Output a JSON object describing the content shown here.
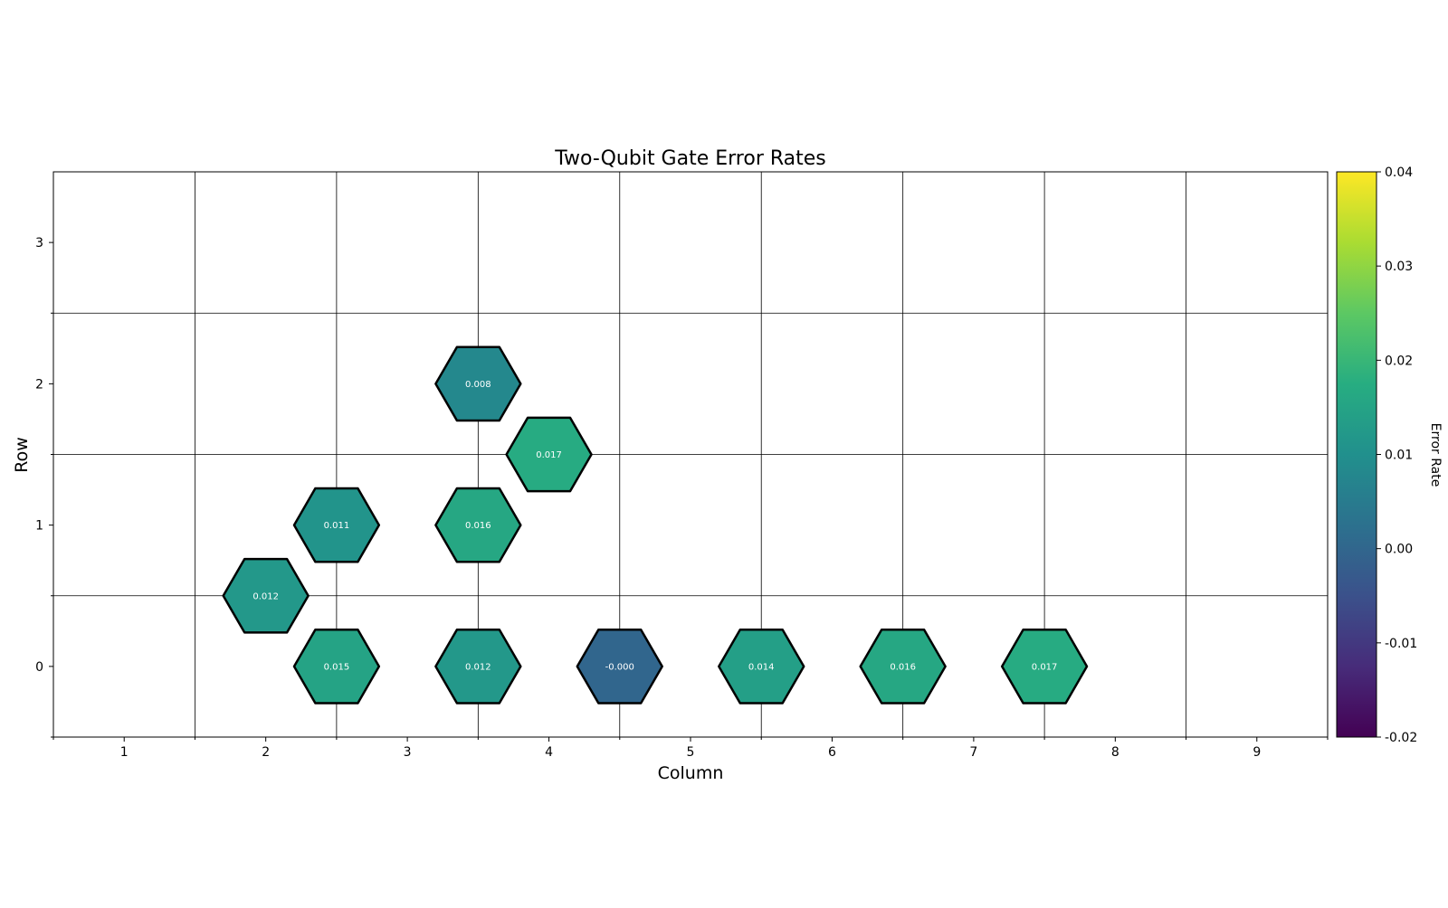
{
  "chart_data": {
    "type": "heatmap",
    "title": "Two-Qubit Gate Error Rates",
    "xlabel": "Column",
    "ylabel": "Row",
    "xlim": [
      0.5,
      9.5
    ],
    "ylim": [
      -0.5,
      3.5
    ],
    "xticks": [
      1,
      2,
      3,
      4,
      5,
      6,
      7,
      8,
      9
    ],
    "yticks": [
      0,
      1,
      2,
      3
    ],
    "xtick_labels": [
      "1",
      "2",
      "3",
      "4",
      "5",
      "6",
      "7",
      "8",
      "9"
    ],
    "ytick_labels": [
      "0",
      "1",
      "2",
      "3"
    ],
    "minor_gridlines_x": [
      1.5,
      2.5,
      3.5,
      4.5,
      5.5,
      6.5,
      7.5,
      8.5
    ],
    "minor_gridlines_y": [
      0.5,
      1.5,
      2.5
    ],
    "grid": true,
    "colormap": "viridis",
    "colorbar": {
      "label": "Error Rate",
      "vmin": -0.02,
      "vmax": 0.04,
      "ticks": [
        -0.02,
        -0.01,
        0.0,
        0.01,
        0.02,
        0.03,
        0.04
      ],
      "tick_labels": [
        "-0.02",
        "-0.01",
        "0.00",
        "0.01",
        "0.02",
        "0.03",
        "0.04"
      ],
      "placement": "right"
    },
    "points": [
      {
        "x": 2.5,
        "y": 0,
        "value": 0.015,
        "label": "0.015"
      },
      {
        "x": 3.5,
        "y": 0,
        "value": 0.012,
        "label": "0.012"
      },
      {
        "x": 4.5,
        "y": 0,
        "value": -0.0,
        "label": "-0.000"
      },
      {
        "x": 5.5,
        "y": 0,
        "value": 0.014,
        "label": "0.014"
      },
      {
        "x": 6.5,
        "y": 0,
        "value": 0.016,
        "label": "0.016"
      },
      {
        "x": 7.5,
        "y": 0,
        "value": 0.017,
        "label": "0.017"
      },
      {
        "x": 2.0,
        "y": 0.5,
        "value": 0.012,
        "label": "0.012"
      },
      {
        "x": 2.5,
        "y": 1,
        "value": 0.011,
        "label": "0.011"
      },
      {
        "x": 3.5,
        "y": 1,
        "value": 0.016,
        "label": "0.016"
      },
      {
        "x": 4.0,
        "y": 1.5,
        "value": 0.017,
        "label": "0.017"
      },
      {
        "x": 3.5,
        "y": 2,
        "value": 0.008,
        "label": "0.008"
      }
    ]
  }
}
